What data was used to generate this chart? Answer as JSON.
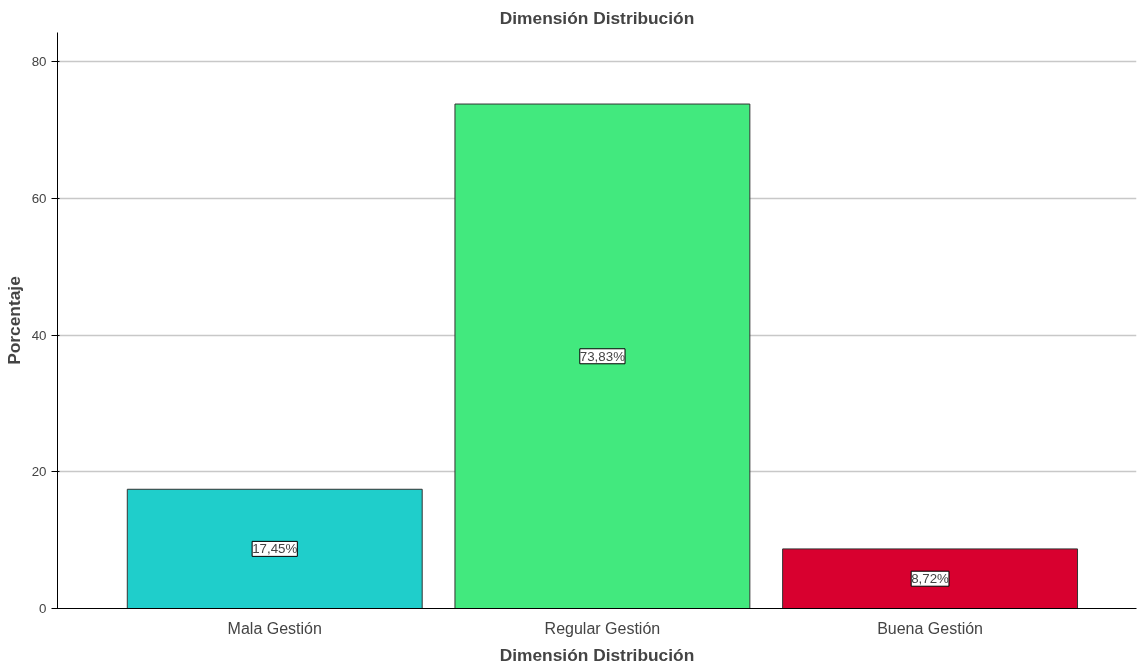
{
  "chart_data": {
    "type": "bar",
    "title": "Dimensión Distribución",
    "xlabel": "Dimensión Distribución",
    "ylabel": "Porcentaje",
    "categories": [
      "Mala Gestión",
      "Regular Gestión",
      "Buena Gestión"
    ],
    "values": [
      17.45,
      73.83,
      8.72
    ],
    "colors": [
      "#1fcecb",
      "#42e97e",
      "#d8002f"
    ],
    "value_labels": [
      "17,45%",
      "73,83%",
      "8,72%"
    ],
    "ylim": [
      0,
      84.3
    ],
    "yticks": [
      0,
      20,
      40,
      60,
      80
    ],
    "grid": "y"
  }
}
